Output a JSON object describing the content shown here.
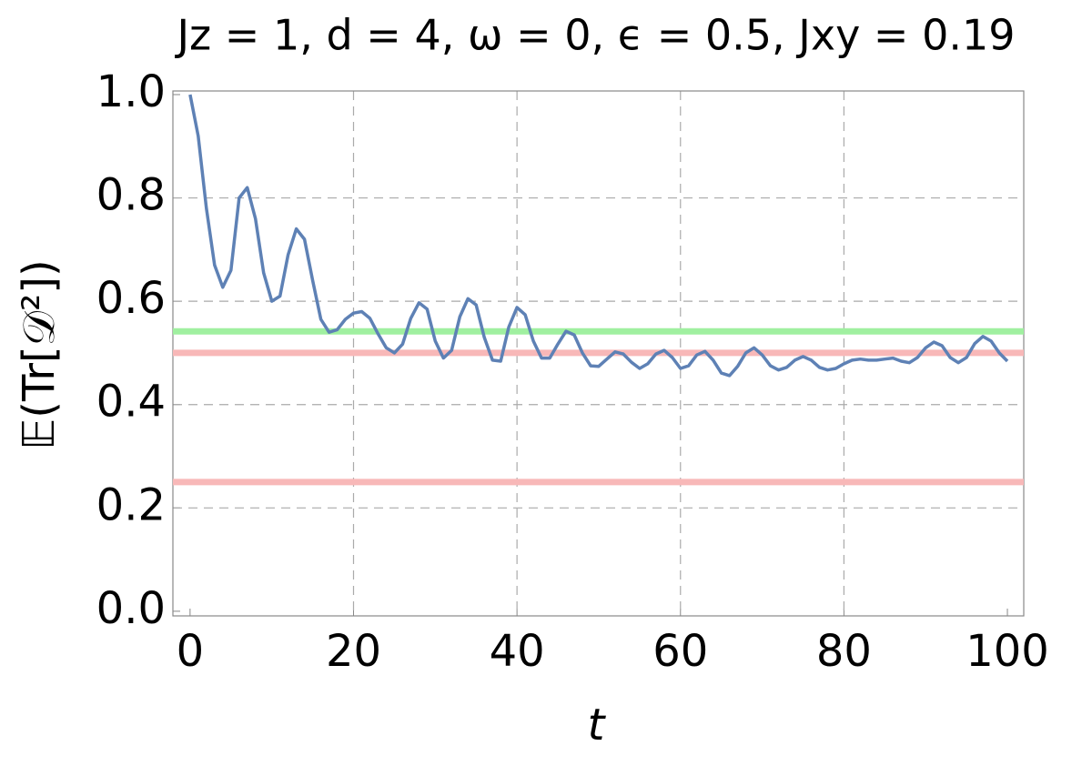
{
  "chart_data": {
    "type": "line",
    "title": "Jz = 1, d = 4, ω = 0, ϵ = 0.5, Jxy = 0.19",
    "x_label": "t",
    "y_label": "𝔼(Tr[𝒟²])",
    "x": [
      0,
      1,
      2,
      3,
      4,
      5,
      6,
      7,
      8,
      9,
      10,
      11,
      12,
      13,
      14,
      15,
      16,
      17,
      18,
      19,
      20,
      21,
      22,
      23,
      24,
      25,
      26,
      27,
      28,
      29,
      30,
      31,
      32,
      33,
      34,
      35,
      36,
      37,
      38,
      39,
      40,
      41,
      42,
      43,
      44,
      45,
      46,
      47,
      48,
      49,
      50,
      51,
      52,
      53,
      54,
      55,
      56,
      57,
      58,
      59,
      60,
      61,
      62,
      63,
      64,
      65,
      66,
      67,
      68,
      69,
      70,
      71,
      72,
      73,
      74,
      75,
      76,
      77,
      78,
      79,
      80,
      81,
      82,
      83,
      84,
      85,
      86,
      87,
      88,
      89,
      90,
      91,
      92,
      93,
      94,
      95,
      96,
      97,
      98,
      99,
      100
    ],
    "series": [
      {
        "name": "E(Tr[D^2])",
        "color": "#5e81b5",
        "values": [
          1.0,
          0.92,
          0.78,
          0.67,
          0.627,
          0.66,
          0.8,
          0.82,
          0.76,
          0.655,
          0.6,
          0.61,
          0.69,
          0.74,
          0.72,
          0.64,
          0.565,
          0.54,
          0.545,
          0.565,
          0.577,
          0.58,
          0.567,
          0.537,
          0.51,
          0.5,
          0.517,
          0.567,
          0.597,
          0.585,
          0.523,
          0.49,
          0.505,
          0.57,
          0.605,
          0.593,
          0.53,
          0.486,
          0.484,
          0.55,
          0.588,
          0.574,
          0.523,
          0.49,
          0.49,
          0.517,
          0.542,
          0.535,
          0.5,
          0.475,
          0.474,
          0.488,
          0.502,
          0.498,
          0.482,
          0.47,
          0.479,
          0.498,
          0.505,
          0.491,
          0.47,
          0.475,
          0.496,
          0.503,
          0.486,
          0.461,
          0.456,
          0.474,
          0.5,
          0.51,
          0.496,
          0.475,
          0.467,
          0.472,
          0.486,
          0.493,
          0.486,
          0.472,
          0.467,
          0.47,
          0.479,
          0.486,
          0.488,
          0.486,
          0.486,
          0.488,
          0.49,
          0.484,
          0.481,
          0.491,
          0.51,
          0.521,
          0.514,
          0.491,
          0.481,
          0.491,
          0.518,
          0.532,
          0.523,
          0.5,
          0.484
        ]
      }
    ],
    "hlines": [
      {
        "value": 0.5417,
        "color": "#a0f0a0"
      },
      {
        "value": 0.5,
        "color": "#f8b8b8"
      },
      {
        "value": 0.25,
        "color": "#f8b8b8"
      }
    ],
    "xlim": [
      -2.1,
      102
    ],
    "ylim": [
      -0.009,
      1.007
    ],
    "xticks": [
      0,
      20,
      40,
      60,
      80,
      100
    ],
    "yticks": [
      {
        "value": 0,
        "label": "0.0"
      },
      0.2,
      0.4,
      0.6,
      0.8,
      {
        "value": 1,
        "label": "1.0"
      }
    ],
    "grid": true
  }
}
